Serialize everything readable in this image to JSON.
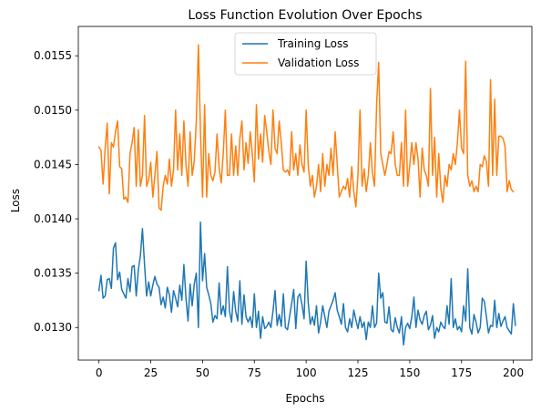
{
  "chart_data": {
    "type": "line",
    "title": "Loss Function Evolution Over Epochs",
    "xlabel": "Epochs",
    "ylabel": "Loss",
    "xlim": [
      -9.95,
      208.95
    ],
    "ylim": [
      0.0127,
      0.01577
    ],
    "xticks": [
      0,
      25,
      50,
      75,
      100,
      125,
      150,
      175,
      200
    ],
    "xtick_labels": [
      "0",
      "25",
      "50",
      "75",
      "100",
      "125",
      "150",
      "175",
      "200"
    ],
    "yticks": [
      0.013,
      0.0135,
      0.014,
      0.0145,
      0.015,
      0.0155
    ],
    "ytick_labels": [
      "0.0130",
      "0.0135",
      "0.0140",
      "0.0145",
      "0.0150",
      "0.0155"
    ],
    "grid": false,
    "legend_position": "upper-center",
    "series": [
      {
        "name": "Training Loss",
        "color": "#1f77b4",
        "x_start": 0,
        "x_step": 1,
        "values": [
          0.01334,
          0.01348,
          0.01327,
          0.01329,
          0.01344,
          0.01345,
          0.01336,
          0.01373,
          0.01378,
          0.01344,
          0.01351,
          0.01335,
          0.01331,
          0.01327,
          0.01345,
          0.01333,
          0.01356,
          0.01357,
          0.01329,
          0.01353,
          0.01366,
          0.01391,
          0.01358,
          0.01329,
          0.01342,
          0.01329,
          0.01339,
          0.01347,
          0.0134,
          0.01337,
          0.01321,
          0.01328,
          0.01318,
          0.01337,
          0.0133,
          0.01314,
          0.01334,
          0.01327,
          0.01319,
          0.01339,
          0.01325,
          0.01358,
          0.01327,
          0.01306,
          0.0134,
          0.0132,
          0.0134,
          0.0135,
          0.013,
          0.01397,
          0.01343,
          0.01368,
          0.01337,
          0.0133,
          0.01322,
          0.01305,
          0.01311,
          0.01308,
          0.01341,
          0.01312,
          0.0132,
          0.0131,
          0.01356,
          0.01315,
          0.01305,
          0.01333,
          0.01315,
          0.01306,
          0.01343,
          0.01303,
          0.0133,
          0.0131,
          0.01305,
          0.0131,
          0.013,
          0.01331,
          0.013,
          0.01315,
          0.0129,
          0.0131,
          0.01299,
          0.01301,
          0.01305,
          0.013,
          0.01315,
          0.01334,
          0.01302,
          0.01312,
          0.01301,
          0.01331,
          0.013,
          0.01298,
          0.0131,
          0.01322,
          0.01335,
          0.01299,
          0.01328,
          0.01331,
          0.01321,
          0.01308,
          0.01361,
          0.01323,
          0.01303,
          0.0131,
          0.01302,
          0.0132,
          0.01295,
          0.01305,
          0.0132,
          0.0131,
          0.013,
          0.01315,
          0.0132,
          0.01325,
          0.01332,
          0.01316,
          0.0131,
          0.01303,
          0.01322,
          0.013,
          0.01296,
          0.01308,
          0.013,
          0.01316,
          0.01307,
          0.01299,
          0.0131,
          0.013,
          0.01305,
          0.01289,
          0.01305,
          0.013,
          0.0132,
          0.013,
          0.01304,
          0.0135,
          0.01327,
          0.01332,
          0.01305,
          0.01304,
          0.01319,
          0.01298,
          0.01296,
          0.01309,
          0.013,
          0.01295,
          0.0131,
          0.01284,
          0.013,
          0.01304,
          0.01299,
          0.0131,
          0.01328,
          0.013,
          0.01316,
          0.01307,
          0.01303,
          0.01311,
          0.01315,
          0.01298,
          0.01302,
          0.01311,
          0.0129,
          0.013,
          0.01296,
          0.01305,
          0.01301,
          0.01299,
          0.0132,
          0.01303,
          0.01345,
          0.013,
          0.01308,
          0.01298,
          0.01301,
          0.01296,
          0.0132,
          0.01306,
          0.01354,
          0.013,
          0.01294,
          0.01312,
          0.01305,
          0.01295,
          0.013,
          0.01327,
          0.01324,
          0.0131,
          0.01295,
          0.01302,
          0.01301,
          0.01325,
          0.013,
          0.01313,
          0.01301,
          0.01306,
          0.0131,
          0.013,
          0.01297,
          0.01294,
          0.01322,
          0.01302
        ]
      },
      {
        "name": "Validation Loss",
        "color": "#ff7f0e",
        "x_start": 0,
        "x_step": 1,
        "values": [
          0.01466,
          0.01463,
          0.01432,
          0.01465,
          0.01488,
          0.01423,
          0.0147,
          0.01466,
          0.0148,
          0.0149,
          0.01448,
          0.01446,
          0.01418,
          0.0142,
          0.01415,
          0.0146,
          0.0147,
          0.01484,
          0.0143,
          0.01482,
          0.0143,
          0.0144,
          0.01495,
          0.0143,
          0.01436,
          0.01452,
          0.0142,
          0.0144,
          0.01462,
          0.0141,
          0.01408,
          0.0143,
          0.0144,
          0.01432,
          0.01455,
          0.0143,
          0.01445,
          0.015,
          0.01445,
          0.01478,
          0.0144,
          0.0149,
          0.0145,
          0.0143,
          0.0148,
          0.0144,
          0.01453,
          0.0149,
          0.0156,
          0.0148,
          0.0142,
          0.01505,
          0.0142,
          0.0146,
          0.0144,
          0.01435,
          0.01443,
          0.01478,
          0.01447,
          0.01433,
          0.0146,
          0.015,
          0.0144,
          0.0144,
          0.01478,
          0.0144,
          0.01467,
          0.0144,
          0.01474,
          0.0149,
          0.01445,
          0.0147,
          0.01451,
          0.0148,
          0.0146,
          0.01434,
          0.01505,
          0.01455,
          0.01478,
          0.01452,
          0.01495,
          0.0148,
          0.01462,
          0.0145,
          0.015,
          0.01465,
          0.0146,
          0.0149,
          0.0147,
          0.01445,
          0.01443,
          0.01445,
          0.0144,
          0.0148,
          0.01445,
          0.0146,
          0.0144,
          0.01468,
          0.0145,
          0.01443,
          0.015,
          0.0145,
          0.0143,
          0.0144,
          0.0142,
          0.0143,
          0.0145,
          0.01425,
          0.0146,
          0.0143,
          0.0145,
          0.0144,
          0.01465,
          0.0144,
          0.0148,
          0.0145,
          0.0142,
          0.01425,
          0.0143,
          0.01427,
          0.01437,
          0.0142,
          0.01448,
          0.01425,
          0.01411,
          0.0144,
          0.015,
          0.0143,
          0.01446,
          0.01425,
          0.0144,
          0.0147,
          0.01442,
          0.0143,
          0.01505,
          0.01544,
          0.0146,
          0.0145,
          0.0144,
          0.0145,
          0.01462,
          0.0146,
          0.0148,
          0.0145,
          0.0144,
          0.0144,
          0.0147,
          0.0143,
          0.015,
          0.0143,
          0.01449,
          0.0147,
          0.0145,
          0.0147,
          0.01455,
          0.0142,
          0.01465,
          0.01445,
          0.0144,
          0.0143,
          0.0152,
          0.0144,
          0.01475,
          0.0142,
          0.0146,
          0.01428,
          0.01415,
          0.0144,
          0.0143,
          0.0145,
          0.01445,
          0.0146,
          0.0145,
          0.0147,
          0.015,
          0.01465,
          0.0146,
          0.01545,
          0.0144,
          0.0143,
          0.01435,
          0.01425,
          0.0143,
          0.01425,
          0.0145,
          0.01448,
          0.01458,
          0.01453,
          0.0143,
          0.01528,
          0.0144,
          0.0151,
          0.0144,
          0.01476,
          0.01476,
          0.01474,
          0.01467,
          0.01425,
          0.01435,
          0.01427,
          0.01425
        ]
      }
    ]
  }
}
